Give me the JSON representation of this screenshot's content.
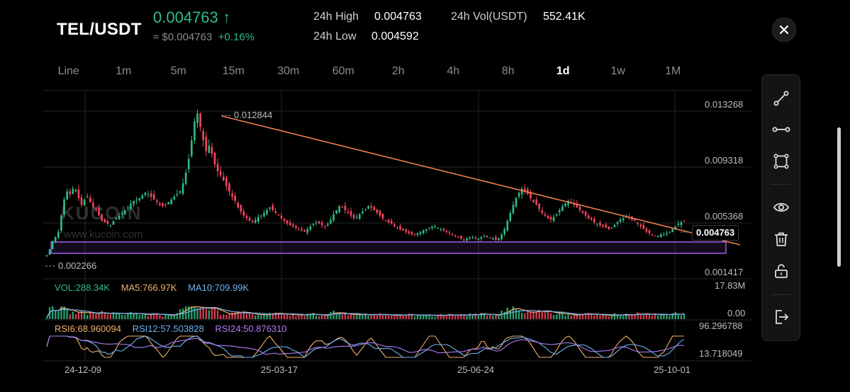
{
  "header": {
    "pair": "TEL/USDT",
    "price": "0.004763",
    "price_arrow": "↑",
    "fiat_price": "≈ $0.004763",
    "change_pct": "+0.16%",
    "high_label": "24h High",
    "high_value": "0.004763",
    "low_label": "24h Low",
    "low_value": "0.004592",
    "vol_label": "24h Vol(USDT)",
    "vol_value": "552.41K",
    "close_icon": "close-icon"
  },
  "tabs": [
    {
      "label": "Line",
      "active": false
    },
    {
      "label": "1m",
      "active": false
    },
    {
      "label": "5m",
      "active": false
    },
    {
      "label": "15m",
      "active": false
    },
    {
      "label": "30m",
      "active": false
    },
    {
      "label": "60m",
      "active": false
    },
    {
      "label": "2h",
      "active": false
    },
    {
      "label": "4h",
      "active": false
    },
    {
      "label": "8h",
      "active": false
    },
    {
      "label": "1d",
      "active": true
    },
    {
      "label": "1w",
      "active": false
    },
    {
      "label": "1M",
      "active": false
    }
  ],
  "tools": [
    "trendline-icon",
    "horizontal-line-icon",
    "rectangle-icon",
    "eye-icon",
    "trash-icon",
    "unlock-icon",
    "exit-icon"
  ],
  "price_axis": {
    "ticks": [
      "0.013268",
      "0.009318",
      "0.005368",
      "0.001417"
    ],
    "current_price": "0.004763",
    "high_marker": "0.012844",
    "low_marker": "0.002266"
  },
  "watermark": {
    "brand": "KUCOIN",
    "url": "www.kucoin.com"
  },
  "volume": {
    "vol": "VOL:288.34K",
    "ma5": "MA5:766.97K",
    "ma10": "MA10:709.99K",
    "axis_top": "17.83M",
    "axis_bottom": "0.00"
  },
  "rsi": {
    "rsi6": "RSI6:68.960094",
    "rsi12": "RSI12:57.503828",
    "rsi24": "RSI24:50.876310",
    "axis_top": "96.296788",
    "axis_bottom": "13.718049"
  },
  "dates": [
    "24-12-09",
    "25-03-17",
    "25-06-24",
    "25-10-01"
  ],
  "colors": {
    "up": "#2ebd85",
    "down": "#f6465d",
    "trendline": "#f0814a",
    "support_box": "#a35cf0",
    "ma5": "#f0b16a",
    "ma10": "#6fb3f2",
    "rsi6": "#f0b16a",
    "rsi12": "#6fb3f2",
    "rsi24": "#b07cf5"
  },
  "chart_data": {
    "type": "candlestick",
    "ylim": [
      0.0005,
      0.0145
    ],
    "close_series": [
      0.00226,
      0.0027,
      0.0033,
      0.0036,
      0.004,
      0.0052,
      0.0064,
      0.007,
      0.0068,
      0.0072,
      0.0071,
      0.0065,
      0.006,
      0.0064,
      0.0066,
      0.0062,
      0.0058,
      0.0056,
      0.0052,
      0.0048,
      0.0047,
      0.0046,
      0.0045,
      0.0048,
      0.005,
      0.0052,
      0.0054,
      0.0056,
      0.0058,
      0.0061,
      0.0063,
      0.0064,
      0.0065,
      0.0067,
      0.0069,
      0.0068,
      0.0066,
      0.0064,
      0.0062,
      0.006,
      0.0059,
      0.006,
      0.0062,
      0.0064,
      0.0066,
      0.0068,
      0.007,
      0.0076,
      0.0084,
      0.0094,
      0.0108,
      0.0122,
      0.0128,
      0.0118,
      0.0108,
      0.01,
      0.0104,
      0.0098,
      0.009,
      0.0085,
      0.0082,
      0.0078,
      0.0074,
      0.007,
      0.0066,
      0.0063,
      0.0058,
      0.0055,
      0.0052,
      0.005,
      0.0048,
      0.0047,
      0.0049,
      0.0051,
      0.0052,
      0.0054,
      0.0056,
      0.0058,
      0.0056,
      0.0054,
      0.0052,
      0.005,
      0.0048,
      0.0046,
      0.0045,
      0.0044,
      0.0043,
      0.0042,
      0.0041,
      0.004,
      0.0042,
      0.0044,
      0.0046,
      0.0047,
      0.0046,
      0.0045,
      0.0044,
      0.0046,
      0.0049,
      0.0053,
      0.0056,
      0.0059,
      0.0058,
      0.0056,
      0.0054,
      0.0052,
      0.005,
      0.0051,
      0.0053,
      0.0055,
      0.0057,
      0.0059,
      0.0058,
      0.0056,
      0.0054,
      0.0052,
      0.005,
      0.0048,
      0.0047,
      0.0046,
      0.0044,
      0.0043,
      0.0042,
      0.0041,
      0.004,
      0.0039,
      0.0038,
      0.0038,
      0.0039,
      0.004,
      0.0041,
      0.0042,
      0.0043,
      0.0044,
      0.0044,
      0.0043,
      0.0042,
      0.0041,
      0.004,
      0.0039,
      0.0038,
      0.0037,
      0.0036,
      0.0035,
      0.0034,
      0.0035,
      0.0036,
      0.0036,
      0.0035,
      0.0035,
      0.0036,
      0.0037,
      0.0036,
      0.0035,
      0.0035,
      0.0034,
      0.0035,
      0.0038,
      0.0042,
      0.0048,
      0.0054,
      0.006,
      0.0065,
      0.0069,
      0.0072,
      0.007,
      0.0068,
      0.0065,
      0.0062,
      0.006,
      0.0057,
      0.0054,
      0.0052,
      0.005,
      0.0049,
      0.0051,
      0.0053,
      0.0056,
      0.0059,
      0.0061,
      0.0063,
      0.0062,
      0.006,
      0.0058,
      0.0056,
      0.0054,
      0.0052,
      0.005,
      0.0049,
      0.0047,
      0.0046,
      0.0045,
      0.0044,
      0.0043,
      0.0042,
      0.0043,
      0.0045,
      0.0047,
      0.0049,
      0.005,
      0.0051,
      0.005,
      0.0049,
      0.0048,
      0.0046,
      0.0044,
      0.0042,
      0.004,
      0.0039,
      0.0038,
      0.0037,
      0.0037,
      0.0038,
      0.0038,
      0.0039,
      0.004,
      0.0042,
      0.0044,
      0.0046,
      0.0047,
      0.00476
    ]
  }
}
